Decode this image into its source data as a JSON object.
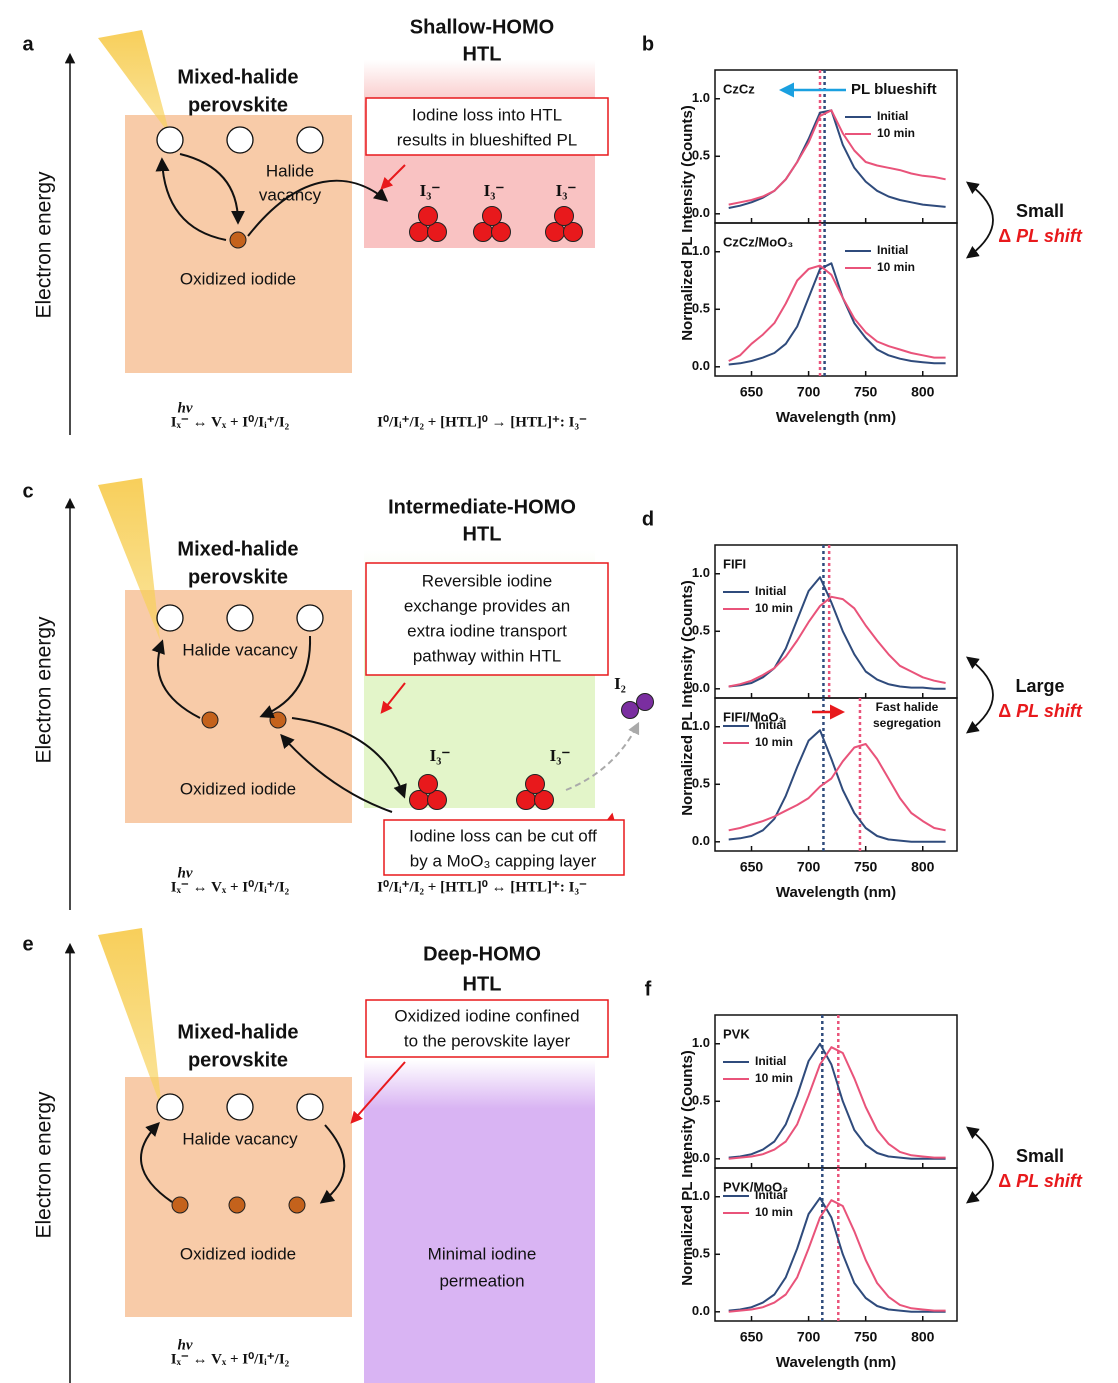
{
  "chart_data": [
    {
      "type": "line",
      "panel": "b",
      "title": "CzCz",
      "ylabel": "Normalized PL Intensity (Counts)",
      "legend": "upper right",
      "x": [
        630,
        640,
        650,
        660,
        670,
        680,
        690,
        700,
        710,
        720,
        730,
        740,
        750,
        760,
        770,
        780,
        790,
        800,
        810,
        820
      ],
      "series": [
        {
          "name": "Initial",
          "color": "#2f4b7c",
          "values": [
            0.05,
            0.07,
            0.1,
            0.14,
            0.2,
            0.3,
            0.45,
            0.65,
            0.88,
            0.9,
            0.6,
            0.4,
            0.28,
            0.2,
            0.15,
            0.12,
            0.1,
            0.08,
            0.07,
            0.06
          ]
        },
        {
          "name": "10 min",
          "color": "#e9537a",
          "values": [
            0.08,
            0.1,
            0.12,
            0.15,
            0.2,
            0.3,
            0.45,
            0.62,
            0.85,
            0.9,
            0.7,
            0.55,
            0.45,
            0.42,
            0.4,
            0.38,
            0.35,
            0.33,
            0.32,
            0.3
          ]
        }
      ],
      "markers": [
        {
          "x": 710,
          "color": "#e9537a"
        },
        {
          "x": 714,
          "color": "#2f4b7c"
        }
      ],
      "annotation": {
        "text": [
          "PL blueshift"
        ],
        "color": "#1aa0e0"
      },
      "xlim": [
        618,
        830
      ],
      "ylim": [
        -0.08,
        1.25
      ],
      "yticks": [
        {
          "value": 0,
          "label": "0.0"
        },
        {
          "value": 0.5,
          "label": "0.5"
        },
        {
          "value": 1,
          "label": "1.0"
        }
      ]
    },
    {
      "type": "line",
      "title": "CzCz/MoO₃",
      "legend": "upper right",
      "x": [
        630,
        640,
        650,
        660,
        670,
        680,
        690,
        700,
        710,
        720,
        730,
        740,
        750,
        760,
        770,
        780,
        790,
        800,
        810,
        820
      ],
      "series": [
        {
          "name": "Initial",
          "color": "#2f4b7c",
          "values": [
            0.02,
            0.03,
            0.05,
            0.08,
            0.12,
            0.2,
            0.35,
            0.6,
            0.85,
            0.9,
            0.6,
            0.38,
            0.25,
            0.15,
            0.1,
            0.07,
            0.05,
            0.04,
            0.03,
            0.03
          ]
        },
        {
          "name": "10 min",
          "color": "#e9537a",
          "values": [
            0.05,
            0.1,
            0.2,
            0.28,
            0.38,
            0.55,
            0.75,
            0.85,
            0.88,
            0.8,
            0.6,
            0.42,
            0.3,
            0.22,
            0.18,
            0.15,
            0.12,
            0.1,
            0.08,
            0.08
          ]
        }
      ],
      "markers": [
        {
          "x": 710,
          "color": "#e9537a"
        },
        {
          "x": 714,
          "color": "#2f4b7c"
        }
      ],
      "xlabel": "Wavelength (nm)",
      "xlim": [
        618,
        830
      ],
      "ylim": [
        -0.08,
        1.25
      ],
      "xticks": [
        650,
        700,
        750,
        800
      ],
      "yticks": [
        {
          "value": 0,
          "label": "0.0"
        },
        {
          "value": 0.5,
          "label": "0.5"
        },
        {
          "value": 1,
          "label": "1.0"
        }
      ]
    },
    {
      "type": "line",
      "panel": "d",
      "title": "FIFI",
      "ylabel": "Normalized PL Intensity (Counts)",
      "legend": "upper left",
      "x": [
        630,
        640,
        650,
        660,
        670,
        680,
        690,
        700,
        710,
        720,
        730,
        740,
        750,
        760,
        770,
        780,
        790,
        800,
        810,
        820
      ],
      "series": [
        {
          "name": "Initial",
          "color": "#2f4b7c",
          "values": [
            0.02,
            0.03,
            0.05,
            0.1,
            0.18,
            0.35,
            0.6,
            0.85,
            0.97,
            0.75,
            0.5,
            0.3,
            0.15,
            0.08,
            0.04,
            0.02,
            0.01,
            0.01,
            0,
            0
          ]
        },
        {
          "name": "10 min",
          "color": "#e9537a",
          "values": [
            0.02,
            0.04,
            0.07,
            0.12,
            0.18,
            0.28,
            0.42,
            0.58,
            0.72,
            0.8,
            0.78,
            0.7,
            0.55,
            0.42,
            0.3,
            0.2,
            0.15,
            0.1,
            0.07,
            0.05
          ]
        }
      ],
      "markers": [
        {
          "x": 713,
          "color": "#2f4b7c"
        },
        {
          "x": 718,
          "color": "#e9537a"
        }
      ],
      "xlim": [
        618,
        830
      ],
      "ylim": [
        -0.08,
        1.25
      ],
      "yticks": [
        {
          "value": 0,
          "label": "0.0"
        },
        {
          "value": 0.5,
          "label": "0.5"
        },
        {
          "value": 1,
          "label": "1.0"
        }
      ]
    },
    {
      "type": "line",
      "title": "FIFI/MoO₃",
      "legend": "upper left",
      "x": [
        630,
        640,
        650,
        660,
        670,
        680,
        690,
        700,
        710,
        720,
        730,
        740,
        750,
        760,
        770,
        780,
        790,
        800,
        810,
        820
      ],
      "series": [
        {
          "name": "Initial",
          "color": "#2f4b7c",
          "values": [
            0.02,
            0.03,
            0.05,
            0.1,
            0.2,
            0.4,
            0.65,
            0.88,
            0.97,
            0.72,
            0.45,
            0.25,
            0.12,
            0.05,
            0.02,
            0.01,
            0,
            0,
            0,
            0
          ]
        },
        {
          "name": "10 min",
          "color": "#e9537a",
          "values": [
            0.1,
            0.12,
            0.15,
            0.18,
            0.22,
            0.27,
            0.32,
            0.38,
            0.48,
            0.55,
            0.7,
            0.82,
            0.85,
            0.72,
            0.55,
            0.38,
            0.25,
            0.18,
            0.12,
            0.1
          ]
        }
      ],
      "markers": [
        {
          "x": 713,
          "color": "#2f4b7c"
        },
        {
          "x": 745,
          "color": "#e9537a"
        }
      ],
      "annotation": {
        "text": [
          "Fast halide",
          "segregation"
        ],
        "color": "#e8191c"
      },
      "xlabel": "Wavelength (nm)",
      "xlim": [
        618,
        830
      ],
      "ylim": [
        -0.08,
        1.25
      ],
      "xticks": [
        650,
        700,
        750,
        800
      ],
      "yticks": [
        {
          "value": 0,
          "label": "0.0"
        },
        {
          "value": 0.5,
          "label": "0.5"
        },
        {
          "value": 1,
          "label": "1.0"
        }
      ]
    },
    {
      "type": "line",
      "panel": "f",
      "title": "PVK",
      "ylabel": "Normalized PL Intensity (Counts)",
      "legend": "upper left",
      "x": [
        630,
        640,
        650,
        660,
        670,
        680,
        690,
        700,
        710,
        720,
        730,
        740,
        750,
        760,
        770,
        780,
        790,
        800,
        810,
        820
      ],
      "series": [
        {
          "name": "Initial",
          "color": "#2f4b7c",
          "values": [
            0.01,
            0.02,
            0.04,
            0.08,
            0.15,
            0.3,
            0.55,
            0.85,
            1.0,
            0.82,
            0.5,
            0.25,
            0.12,
            0.05,
            0.02,
            0.01,
            0,
            0,
            0,
            0
          ]
        },
        {
          "name": "10 min",
          "color": "#e9537a",
          "values": [
            0,
            0.01,
            0.02,
            0.04,
            0.08,
            0.15,
            0.3,
            0.55,
            0.82,
            0.97,
            0.92,
            0.7,
            0.45,
            0.25,
            0.13,
            0.06,
            0.03,
            0.02,
            0.01,
            0.01
          ]
        }
      ],
      "markers": [
        {
          "x": 712,
          "color": "#2f4b7c"
        },
        {
          "x": 726,
          "color": "#e9537a"
        }
      ],
      "xlim": [
        618,
        830
      ],
      "ylim": [
        -0.08,
        1.25
      ],
      "yticks": [
        {
          "value": 0,
          "label": "0.0"
        },
        {
          "value": 0.5,
          "label": "0.5"
        },
        {
          "value": 1,
          "label": "1.0"
        }
      ]
    },
    {
      "type": "line",
      "title": "PVK/MoO₃",
      "legend": "upper left",
      "x": [
        630,
        640,
        650,
        660,
        670,
        680,
        690,
        700,
        710,
        720,
        730,
        740,
        750,
        760,
        770,
        780,
        790,
        800,
        810,
        820
      ],
      "series": [
        {
          "name": "Initial",
          "color": "#2f4b7c",
          "values": [
            0.01,
            0.02,
            0.04,
            0.08,
            0.15,
            0.3,
            0.55,
            0.85,
            0.99,
            0.82,
            0.5,
            0.25,
            0.12,
            0.05,
            0.02,
            0.01,
            0,
            0,
            0,
            0
          ]
        },
        {
          "name": "10 min",
          "color": "#e9537a",
          "values": [
            0,
            0.01,
            0.02,
            0.04,
            0.08,
            0.15,
            0.3,
            0.55,
            0.82,
            0.97,
            0.92,
            0.7,
            0.45,
            0.25,
            0.13,
            0.06,
            0.03,
            0.02,
            0.01,
            0.01
          ]
        }
      ],
      "markers": [
        {
          "x": 712,
          "color": "#2f4b7c"
        },
        {
          "x": 726,
          "color": "#e9537a"
        }
      ],
      "xlabel": "Wavelength (nm)",
      "xlim": [
        618,
        830
      ],
      "ylim": [
        -0.08,
        1.25
      ],
      "xticks": [
        650,
        700,
        750,
        800
      ],
      "yticks": [
        {
          "value": 0,
          "label": "0.0"
        },
        {
          "value": 0.5,
          "label": "0.5"
        },
        {
          "value": 1,
          "label": "1.0"
        }
      ]
    }
  ],
  "shift_labels": [
    {
      "size": "Small",
      "delta": "Δ",
      "text": "PL shift"
    },
    {
      "size": "Large",
      "delta": "Δ",
      "text": "PL shift"
    },
    {
      "size": "Small",
      "delta": "Δ",
      "text": "PL shift"
    }
  ],
  "diagrams": [
    {
      "letter": "a",
      "htl_title": [
        "Shallow-HOMO",
        "HTL"
      ],
      "perovskite_title": [
        "Mixed-halide",
        "perovskite"
      ],
      "energy_label": "Electron energy",
      "vacancy": [
        "Halide",
        "vacancy"
      ],
      "oxidized": "Oxidized iodide",
      "callout": [
        "Iodine loss into HTL",
        "results in blueshifted PL"
      ],
      "ions": [
        "I₃⁻",
        "I₃⁻",
        "I₃⁻"
      ],
      "equations": [
        {
          "text": "Iₓ⁻ ↔ Vₓ + I⁰/Iᵢ⁺/I₂",
          "over": "hν"
        },
        {
          "text": "I⁰/Iᵢ⁺/I₂ + [HTL]⁰ → [HTL]⁺: I₃⁻"
        }
      ]
    },
    {
      "letter": "c",
      "htl_title": [
        "Intermediate-HOMO",
        "HTL"
      ],
      "perovskite_title": [
        "Mixed-halide",
        "perovskite"
      ],
      "energy_label": "Electron energy",
      "vacancy": [
        "Halide vacancy"
      ],
      "oxidized": "Oxidized iodide",
      "callout": [
        "Reversible iodine",
        "exchange provides an",
        "extra iodine transport",
        "pathway within HTL"
      ],
      "ions": [
        "I₃⁻",
        "I₃⁻"
      ],
      "i2": "I₂",
      "second_callout": [
        "Iodine loss can be cut off",
        "by a MoO₃ capping layer"
      ],
      "equations": [
        {
          "text": "Iₓ⁻ ↔ Vₓ + I⁰/Iᵢ⁺/I₂",
          "over": "hν"
        },
        {
          "text": "I⁰/Iᵢ⁺/I₂ + [HTL]⁰ ↔ [HTL]⁺: I₃⁻"
        }
      ]
    },
    {
      "letter": "e",
      "htl_title": [
        "Deep-HOMO",
        "HTL"
      ],
      "perovskite_title": [
        "Mixed-halide",
        "perovskite"
      ],
      "energy_label": "Electron energy",
      "vacancy": [
        "Halide vacancy"
      ],
      "oxidized": "Oxidized iodide",
      "callout": [
        "Oxidized iodine confined",
        "to the perovskite layer"
      ],
      "htl_note": [
        "Minimal iodine",
        "permeation"
      ],
      "equations": [
        {
          "text": "Iₓ⁻ ↔ Vₓ + I⁰/Iᵢ⁺/I₂",
          "over": "hν"
        }
      ]
    }
  ]
}
